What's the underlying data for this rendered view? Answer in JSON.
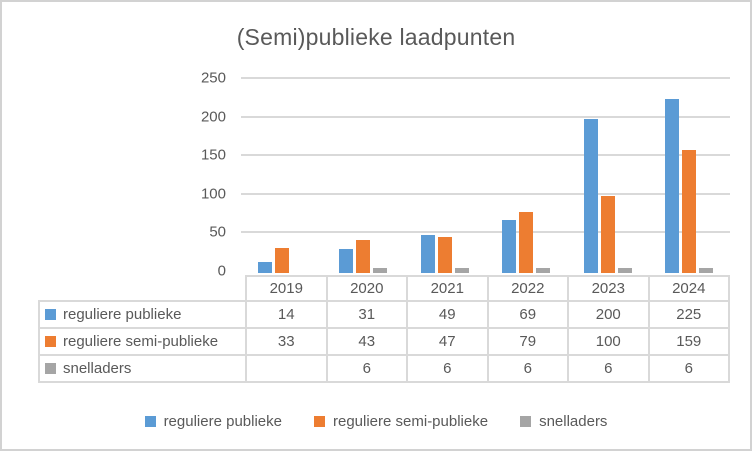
{
  "chart": {
    "title": "(Semi)publieke laadpunten"
  },
  "chart_data": {
    "type": "bar",
    "title": "(Semi)publieke laadpunten",
    "categories": [
      "2019",
      "2020",
      "2021",
      "2022",
      "2023",
      "2024"
    ],
    "series": [
      {
        "name": "reguliere publieke",
        "color": "#5B9BD5",
        "values": [
          14,
          31,
          49,
          69,
          200,
          225
        ]
      },
      {
        "name": "reguliere semi-publieke",
        "color": "#ED7D31",
        "values": [
          33,
          43,
          47,
          79,
          100,
          159
        ]
      },
      {
        "name": "snelladers",
        "color": "#A5A5A5",
        "values": [
          null,
          6,
          6,
          6,
          6,
          6
        ]
      }
    ],
    "ylim": [
      0,
      250
    ],
    "yticks": [
      0,
      50,
      100,
      150,
      200,
      250
    ],
    "grid": true,
    "legend_position": "bottom",
    "data_table_shown": true
  },
  "colors": {
    "series_blue": "#5B9BD5",
    "series_orange": "#ED7D31",
    "series_gray": "#A5A5A5",
    "text_gray": "#595959",
    "gridline": "#D9D9D9",
    "table_border": "#D9D9D9",
    "frame_border": "#D2D2D2"
  }
}
